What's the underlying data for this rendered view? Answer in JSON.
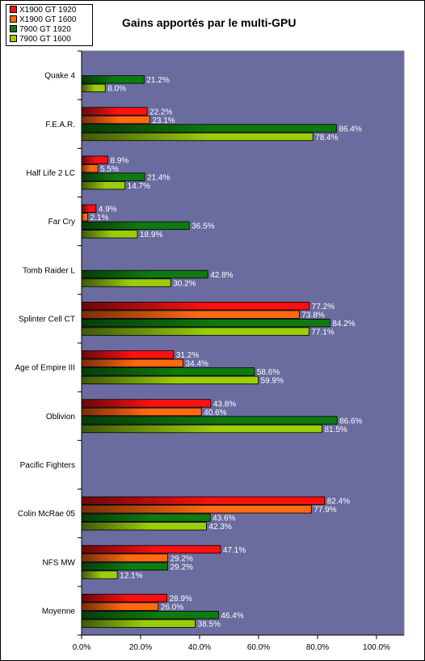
{
  "chart_data": {
    "type": "bar",
    "orientation": "horizontal",
    "title": "Gains apportés par le multi-GPU",
    "categories": [
      "Quake 4",
      "F.E.A.R.",
      "Half Life 2 LC",
      "Far Cry",
      "Tomb Raider L",
      "Splinter Cell CT",
      "Age of Empire III",
      "Oblivion",
      "Pacific Fighters",
      "Colin McRae 05",
      "NFS MW",
      "Moyenne"
    ],
    "series": [
      {
        "name": "X1900 GT 1920",
        "color": "#ff1010",
        "values": [
          null,
          22.2,
          8.9,
          4.9,
          null,
          77.2,
          31.2,
          43.8,
          null,
          82.4,
          47.1,
          28.9
        ]
      },
      {
        "name": "X1900 GT 1600",
        "color": "#ff6a10",
        "values": [
          null,
          23.1,
          5.5,
          2.1,
          null,
          73.8,
          34.4,
          40.6,
          null,
          77.9,
          29.2,
          26.0
        ]
      },
      {
        "name": "7900 GT 1920",
        "color": "#0f7a0f",
        "values": [
          21.2,
          86.4,
          21.4,
          36.5,
          42.8,
          84.2,
          58.6,
          86.6,
          null,
          43.6,
          29.2,
          46.4
        ]
      },
      {
        "name": "7900 GT 1600",
        "color": "#9acd0a",
        "values": [
          8.0,
          78.4,
          14.7,
          18.9,
          30.2,
          77.1,
          59.9,
          81.5,
          null,
          42.3,
          12.1,
          38.5
        ]
      }
    ],
    "data_labels": [
      [
        null,
        "22.2%",
        "8.9%",
        "4.9%",
        null,
        "77.2%",
        "31.2%",
        "43.8%",
        null,
        "82.4%",
        "47.1%",
        "28.9%"
      ],
      [
        null,
        "23.1%",
        "5.5%",
        "2.1%",
        null,
        "73.8%",
        "34.4%",
        "40.6%",
        null,
        "77.9%",
        "29.2%",
        "26.0%"
      ],
      [
        "21.2%",
        "86.4%",
        "21.4%",
        "36.5%",
        "42.8%",
        "84.2%",
        "58.6%",
        "86.6%",
        null,
        "43.6%",
        "29.2%",
        "46.4%"
      ],
      [
        "8.0%",
        "78.4%",
        "14.7%",
        "18.9%",
        "30.2%",
        "77.1%",
        "59.9%",
        "81.5%",
        null,
        "42.3%",
        "12.1%",
        "38.5%"
      ]
    ],
    "xlim": [
      0,
      110
    ],
    "xticks": [
      0,
      20,
      40,
      60,
      80,
      100
    ],
    "xtick_labels": [
      "0.0%",
      "20.0%",
      "40.0%",
      "60.0%",
      "80.0%",
      "100.0%"
    ],
    "plot_background": "#6a6b9f",
    "grid": false,
    "legend_position": "top-left"
  }
}
